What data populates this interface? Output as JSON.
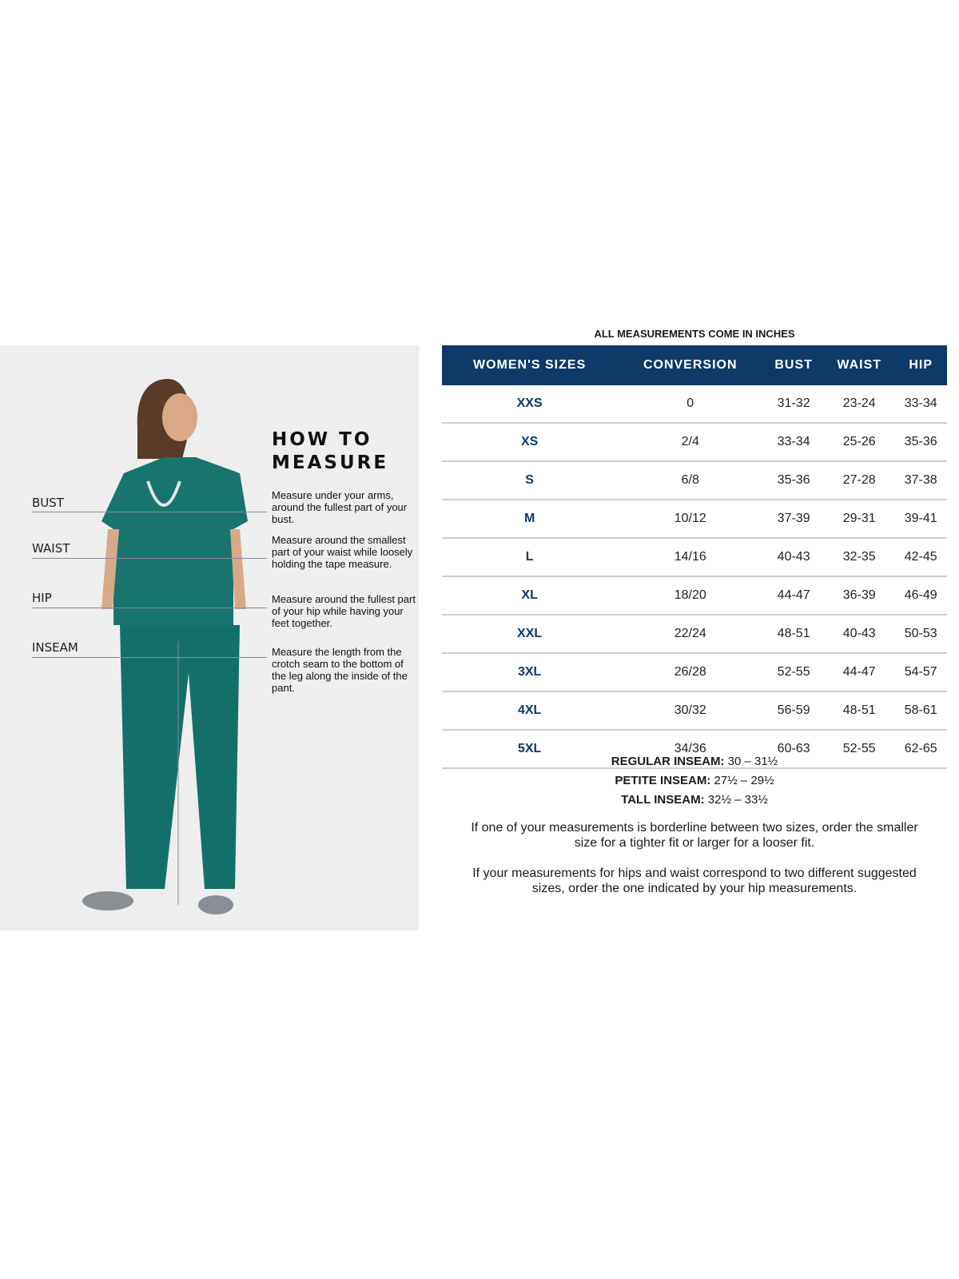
{
  "how_to_measure": {
    "title_line1": "HOW TO",
    "title_line2": "MEASURE",
    "labels": [
      "BUST",
      "WAIST",
      "HIP",
      "INSEAM"
    ],
    "descriptions": [
      "Measure under your arms, around the fullest part of your bust.",
      "Measure around the smallest part of your waist while loosely holding the tape measure.",
      "Measure around the fullest part of your hip while having your feet together.",
      "Measure the length from the crotch seam to the bottom of the leg along the inside of the pant."
    ]
  },
  "table": {
    "note": "ALL MEASUREMENTS COME IN INCHES",
    "headers": [
      "WOMEN'S SIZES",
      "CONVERSION",
      "BUST",
      "WAIST",
      "HIP"
    ],
    "rows": [
      [
        "XXS",
        "0",
        "31-32",
        "23-24",
        "33-34"
      ],
      [
        "XS",
        "2/4",
        "33-34",
        "25-26",
        "35-36"
      ],
      [
        "S",
        "6/8",
        "35-36",
        "27-28",
        "37-38"
      ],
      [
        "M",
        "10/12",
        "37-39",
        "29-31",
        "39-41"
      ],
      [
        "L",
        "14/16",
        "40-43",
        "32-35",
        "42-45"
      ],
      [
        "XL",
        "18/20",
        "44-47",
        "36-39",
        "46-49"
      ],
      [
        "XXL",
        "22/24",
        "48-51",
        "40-43",
        "50-53"
      ],
      [
        "3XL",
        "26/28",
        "52-55",
        "44-47",
        "54-57"
      ],
      [
        "4XL",
        "30/32",
        "56-59",
        "48-51",
        "58-61"
      ],
      [
        "5XL",
        "34/36",
        "60-63",
        "52-55",
        "62-65"
      ]
    ],
    "header_color": "#0d3a68"
  },
  "inseams": [
    {
      "label": "REGULAR INSEAM:",
      "value": "30  – 31½"
    },
    {
      "label": "PETITE INSEAM:",
      "value": "27½ – 29½"
    },
    {
      "label": "TALL INSEAM:",
      "value": "32½ – 33½"
    }
  ],
  "notes": [
    "If one of your measurements is borderline between two sizes, order the smaller size for a tighter fit or larger for a looser fit.",
    "If your measurements for hips and waist correspond to two different suggested sizes, order the one indicated by your hip measurements."
  ]
}
